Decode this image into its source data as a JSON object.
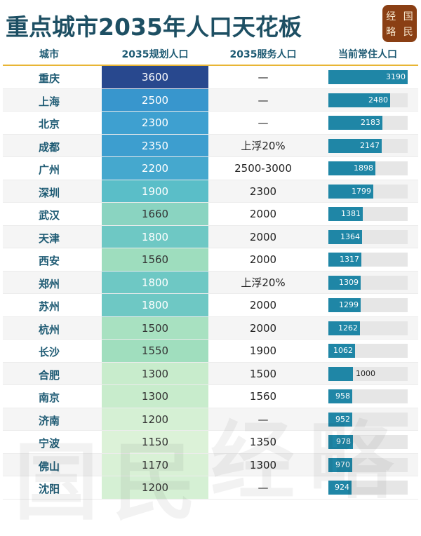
{
  "title": "重点城市2035年人口天花板",
  "logo": [
    "经",
    "国",
    "略",
    "民"
  ],
  "watermark": "国民经略",
  "colors": {
    "bar": "#1f86a6",
    "header_text": "#1d5a73",
    "gold_line": "#e8b534"
  },
  "chart_data": {
    "type": "table",
    "title": "重点城市2035年人口天花板",
    "columns": [
      "城市",
      "2035规划人口",
      "2035服务人口",
      "当前常住人口"
    ],
    "rows": [
      {
        "city": "重庆",
        "plan": 3600,
        "service": "—",
        "current": 3190
      },
      {
        "city": "上海",
        "plan": 2500,
        "service": "—",
        "current": 2480
      },
      {
        "city": "北京",
        "plan": 2300,
        "service": "—",
        "current": 2183
      },
      {
        "city": "成都",
        "plan": 2350,
        "service": "上浮20%",
        "current": 2147
      },
      {
        "city": "广州",
        "plan": 2200,
        "service": "2500-3000",
        "current": 1898
      },
      {
        "city": "深圳",
        "plan": 1900,
        "service": "2300",
        "current": 1799
      },
      {
        "city": "武汉",
        "plan": 1660,
        "service": "2000",
        "current": 1381
      },
      {
        "city": "天津",
        "plan": 1800,
        "service": "2000",
        "current": 1364
      },
      {
        "city": "西安",
        "plan": 1560,
        "service": "2000",
        "current": 1317
      },
      {
        "city": "郑州",
        "plan": 1800,
        "service": "上浮20%",
        "current": 1309
      },
      {
        "city": "苏州",
        "plan": 1800,
        "service": "2000",
        "current": 1299
      },
      {
        "city": "杭州",
        "plan": 1500,
        "service": "2000",
        "current": 1262
      },
      {
        "city": "长沙",
        "plan": 1550,
        "service": "1900",
        "current": 1062
      },
      {
        "city": "合肥",
        "plan": 1300,
        "service": "1500",
        "current": 1000
      },
      {
        "city": "南京",
        "plan": 1300,
        "service": "1560",
        "current": 958
      },
      {
        "city": "济南",
        "plan": 1200,
        "service": "—",
        "current": 952
      },
      {
        "city": "宁波",
        "plan": 1150,
        "service": "1350",
        "current": 978
      },
      {
        "city": "佛山",
        "plan": 1170,
        "service": "1300",
        "current": 970
      },
      {
        "city": "沈阳",
        "plan": 1200,
        "service": "—",
        "current": 924
      }
    ]
  }
}
